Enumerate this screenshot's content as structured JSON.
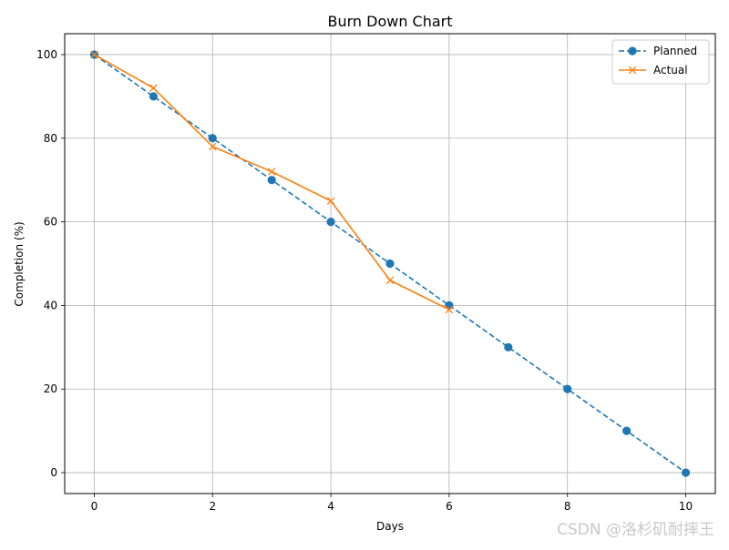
{
  "chart_data": {
    "type": "line",
    "title": "Burn Down Chart",
    "xlabel": "Days",
    "ylabel": "Completion (%)",
    "xlim": [
      -0.5,
      10.5
    ],
    "ylim": [
      -5,
      105
    ],
    "x_ticks": [
      0,
      2,
      4,
      6,
      8,
      10
    ],
    "y_ticks": [
      0,
      20,
      40,
      60,
      80,
      100
    ],
    "grid": true,
    "legend": "top-right",
    "series": [
      {
        "name": "Planned",
        "color": "#1f77b4",
        "line_style": "dashed",
        "marker": "circle",
        "x": [
          0,
          1,
          2,
          3,
          4,
          5,
          6,
          7,
          8,
          9,
          10
        ],
        "y": [
          100,
          90,
          80,
          70,
          60,
          50,
          40,
          30,
          20,
          10,
          0
        ]
      },
      {
        "name": "Actual",
        "color": "#ff7f0e",
        "line_style": "solid",
        "marker": "x",
        "x": [
          0,
          1,
          2,
          3,
          4,
          5,
          6
        ],
        "y": [
          100,
          92,
          78,
          72,
          65,
          46,
          39
        ]
      }
    ]
  },
  "watermark": "CSDN @洛杉矶耐摔王"
}
